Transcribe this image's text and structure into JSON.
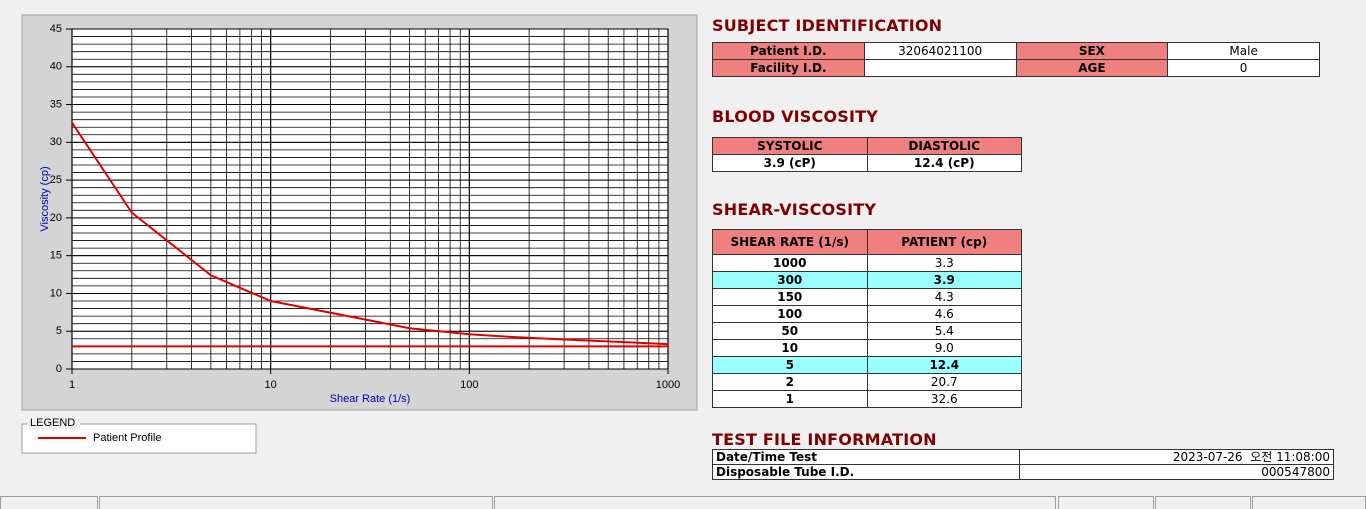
{
  "chart_data": {
    "type": "line",
    "x_label": "Shear Rate (1/s)",
    "y_label": "Viscosity (cp)",
    "x": [
      1,
      2,
      5,
      10,
      50,
      100,
      150,
      300,
      1000
    ],
    "series": [
      {
        "name": "Patient Profile",
        "color": "#e00000",
        "values": [
          32.6,
          20.7,
          12.4,
          9.0,
          5.4,
          4.6,
          4.3,
          3.9,
          3.3
        ]
      }
    ],
    "baseline": 3,
    "xlim": [
      1,
      1000
    ],
    "ylim": [
      0,
      45
    ],
    "xticks": [
      1,
      10,
      100,
      1000
    ],
    "yticks": [
      0,
      5,
      10,
      15,
      20,
      25,
      30,
      35,
      40,
      45
    ],
    "xlog": true,
    "grid": true,
    "legend_title": "LEGEND"
  },
  "subject": {
    "title": "SUBJECT IDENTIFICATION",
    "rows": [
      [
        "Patient I.D.",
        "32064021100",
        "SEX",
        "Male"
      ],
      [
        "Facility I.D.",
        null,
        "AGE",
        "0"
      ]
    ]
  },
  "blood": {
    "title": "BLOOD VISCOSITY",
    "headers": [
      "SYSTOLIC",
      "DIASTOLIC"
    ],
    "values": [
      "3.9 (cP)",
      "12.4 (cP)"
    ]
  },
  "shear": {
    "title": "SHEAR-VISCOSITY",
    "headers": [
      "SHEAR RATE (1/s)",
      "PATIENT (cp)"
    ],
    "rows": [
      [
        "1000",
        "3.3"
      ],
      [
        "300",
        "3.9"
      ],
      [
        "150",
        "4.3"
      ],
      [
        "100",
        "4.6"
      ],
      [
        "50",
        "5.4"
      ],
      [
        "10",
        "9.0"
      ],
      [
        "5",
        "12.4"
      ],
      [
        "2",
        "20.7"
      ],
      [
        "1",
        "32.6"
      ]
    ],
    "highlight_rows": [
      1,
      6
    ]
  },
  "test_file": {
    "title": "TEST FILE INFORMATION",
    "rows": [
      [
        "Date/Time Test",
        "2023-07-26  오전 11:08:00"
      ],
      [
        "Disposable Tube I.D.",
        "000547800"
      ]
    ]
  }
}
